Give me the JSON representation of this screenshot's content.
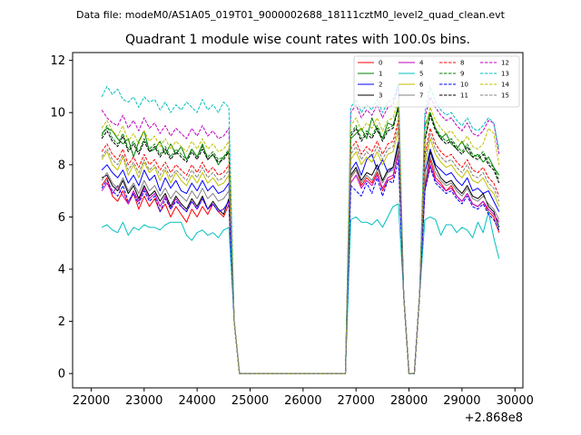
{
  "chart_data": {
    "type": "line",
    "suptitle": "Data file: modeM0/AS1A05_019T01_9000002688_18111cztM0_level2_quad_clean.evt",
    "title": "Quadrant 1 module wise count rates with 100.0s bins.",
    "xlabel": "",
    "ylabel": "",
    "x_offset_label": "+2.868e8",
    "xlim": [
      21650,
      30150
    ],
    "ylim": [
      -0.55,
      12.3
    ],
    "xticks": [
      22000,
      23000,
      24000,
      25000,
      26000,
      27000,
      28000,
      29000,
      30000
    ],
    "yticks": [
      0,
      2,
      4,
      6,
      8,
      10,
      12
    ],
    "legend_position": "top-right",
    "x": [
      22200,
      22300,
      22400,
      22500,
      22600,
      22700,
      22800,
      22900,
      23000,
      23100,
      23200,
      23300,
      23400,
      23500,
      23600,
      23700,
      23800,
      23900,
      24000,
      24100,
      24200,
      24300,
      24400,
      24500,
      24600,
      24700,
      24800,
      26800,
      26900,
      27000,
      27100,
      27200,
      27300,
      27400,
      27500,
      27600,
      27700,
      27800,
      27900,
      28000,
      28100,
      28200,
      28300,
      28400,
      28500,
      28600,
      28700,
      28800,
      28900,
      29000,
      29100,
      29200,
      29300,
      29400,
      29500,
      29600,
      29700
    ],
    "series": [
      {
        "name": "0",
        "color": "#ff0000",
        "dash": "solid",
        "values": [
          7.2,
          7.5,
          6.8,
          6.6,
          7.0,
          6.5,
          6.9,
          6.3,
          6.8,
          6.4,
          6.7,
          6.2,
          6.5,
          6.0,
          6.4,
          6.1,
          5.8,
          6.3,
          6.0,
          6.4,
          6.1,
          6.5,
          6.2,
          6.0,
          6.5,
          2.0,
          0.0,
          0.0,
          7.5,
          7.8,
          7.2,
          7.5,
          7.3,
          7.7,
          7.0,
          7.4,
          7.5,
          8.5,
          3.0,
          0.0,
          0.0,
          3.0,
          7.0,
          8.2,
          7.5,
          7.3,
          7.0,
          7.2,
          6.8,
          6.6,
          6.9,
          6.5,
          6.4,
          6.6,
          6.2,
          6.0,
          5.4
        ]
      },
      {
        "name": "1",
        "color": "#008000",
        "dash": "solid",
        "values": [
          9.2,
          9.4,
          9.3,
          9.0,
          8.8,
          9.0,
          8.3,
          8.9,
          9.3,
          8.5,
          8.6,
          8.9,
          8.4,
          8.8,
          8.4,
          8.7,
          8.2,
          8.6,
          8.3,
          8.8,
          8.2,
          8.4,
          8.0,
          8.3,
          8.5,
          2.0,
          0.0,
          0.0,
          9.0,
          9.2,
          9.4,
          9.0,
          9.8,
          9.3,
          9.0,
          9.6,
          9.5,
          10.2,
          3.0,
          0.0,
          0.0,
          3.0,
          9.5,
          10.0,
          9.4,
          9.0,
          9.2,
          8.8,
          8.6,
          8.9,
          8.5,
          8.3,
          8.4,
          8.1,
          8.3,
          7.9,
          7.6
        ]
      },
      {
        "name": "2",
        "color": "#0000ff",
        "dash": "solid",
        "values": [
          7.8,
          8.0,
          7.7,
          7.5,
          7.8,
          7.3,
          7.6,
          7.2,
          7.8,
          7.4,
          7.6,
          7.0,
          7.5,
          7.1,
          7.4,
          7.0,
          6.9,
          7.3,
          7.0,
          7.4,
          7.0,
          7.2,
          6.9,
          7.0,
          7.3,
          2.0,
          0.0,
          0.0,
          7.8,
          8.1,
          7.6,
          8.2,
          8.4,
          7.8,
          8.2,
          7.7,
          7.9,
          8.9,
          3.0,
          0.0,
          0.0,
          3.0,
          7.7,
          8.6,
          8.0,
          7.8,
          7.6,
          7.7,
          7.4,
          7.2,
          7.5,
          7.0,
          7.1,
          6.9,
          7.0,
          6.6,
          6.2
        ]
      },
      {
        "name": "3",
        "color": "#000000",
        "dash": "solid",
        "values": [
          7.5,
          7.6,
          7.2,
          7.0,
          7.4,
          6.9,
          7.2,
          6.7,
          7.2,
          6.8,
          7.0,
          6.6,
          6.9,
          6.4,
          6.8,
          6.5,
          6.3,
          6.7,
          6.4,
          6.8,
          6.3,
          6.6,
          6.3,
          6.1,
          6.7,
          2.0,
          0.0,
          0.0,
          7.6,
          7.9,
          7.4,
          7.7,
          7.6,
          8.0,
          7.4,
          7.8,
          7.9,
          8.8,
          3.0,
          0.0,
          0.0,
          3.0,
          7.2,
          8.5,
          7.9,
          7.5,
          7.3,
          7.4,
          7.1,
          6.9,
          7.2,
          6.8,
          6.7,
          6.9,
          6.4,
          6.2,
          5.6
        ]
      },
      {
        "name": "4",
        "color": "#bf00bf",
        "dash": "solid",
        "values": [
          7.0,
          7.3,
          6.9,
          7.2,
          6.8,
          6.5,
          7.0,
          6.6,
          7.1,
          6.7,
          6.9,
          6.4,
          6.8,
          6.3,
          6.7,
          6.4,
          6.2,
          6.6,
          6.3,
          6.7,
          6.3,
          6.5,
          6.2,
          6.3,
          6.6,
          2.0,
          0.0,
          0.0,
          7.3,
          7.6,
          7.1,
          7.4,
          7.2,
          7.6,
          7.1,
          7.5,
          7.6,
          8.4,
          3.0,
          0.0,
          0.0,
          3.0,
          7.0,
          8.0,
          7.4,
          7.2,
          7.0,
          7.1,
          6.8,
          6.6,
          6.9,
          6.5,
          6.4,
          6.6,
          6.3,
          6.1,
          5.8
        ]
      },
      {
        "name": "5",
        "color": "#00bfbf",
        "dash": "solid",
        "values": [
          5.6,
          5.7,
          5.5,
          5.4,
          5.8,
          5.3,
          5.6,
          5.5,
          5.7,
          5.6,
          5.6,
          5.5,
          5.7,
          5.8,
          5.8,
          5.8,
          5.3,
          5.1,
          5.4,
          5.5,
          5.3,
          5.4,
          5.2,
          5.5,
          5.6,
          2.0,
          0.0,
          0.0,
          5.9,
          6.0,
          5.8,
          5.8,
          5.7,
          5.9,
          5.6,
          6.0,
          6.4,
          6.5,
          3.0,
          0.0,
          0.0,
          3.0,
          5.9,
          6.0,
          5.9,
          5.3,
          5.7,
          5.7,
          5.4,
          5.6,
          5.5,
          5.2,
          5.8,
          5.4,
          6.2,
          5.2,
          4.4
        ]
      },
      {
        "name": "6",
        "color": "#bfbf00",
        "dash": "solid",
        "values": [
          8.2,
          8.5,
          8.0,
          7.8,
          8.3,
          7.6,
          8.0,
          7.5,
          8.1,
          7.7,
          7.9,
          7.4,
          7.8,
          7.3,
          7.7,
          7.4,
          7.2,
          7.6,
          7.3,
          7.7,
          7.3,
          7.5,
          7.2,
          7.3,
          7.6,
          2.0,
          0.0,
          0.0,
          8.2,
          8.5,
          8.0,
          8.3,
          8.1,
          8.5,
          8.0,
          8.4,
          8.5,
          9.3,
          3.0,
          0.0,
          0.0,
          3.0,
          8.0,
          9.0,
          8.4,
          8.1,
          7.9,
          8.0,
          7.7,
          7.5,
          7.8,
          7.4,
          7.3,
          7.5,
          7.1,
          6.9,
          6.4
        ]
      },
      {
        "name": "7",
        "color": "#808080",
        "dash": "solid",
        "values": [
          7.4,
          7.7,
          7.3,
          7.1,
          7.5,
          7.0,
          7.3,
          6.9,
          7.4,
          7.0,
          7.2,
          6.8,
          7.1,
          6.7,
          7.0,
          6.8,
          6.6,
          7.0,
          6.7,
          7.1,
          6.7,
          6.9,
          6.6,
          6.7,
          7.0,
          2.0,
          0.0,
          0.0,
          7.5,
          7.8,
          7.3,
          7.6,
          7.4,
          7.8,
          7.3,
          7.7,
          7.8,
          8.6,
          3.0,
          0.0,
          0.0,
          3.0,
          7.3,
          8.3,
          7.7,
          7.4,
          7.2,
          7.3,
          7.0,
          6.8,
          7.1,
          6.7,
          6.6,
          6.8,
          6.5,
          6.3,
          5.9
        ]
      },
      {
        "name": "8",
        "color": "#ff0000",
        "dash": "dashed",
        "values": [
          8.5,
          8.8,
          8.4,
          8.2,
          8.6,
          8.0,
          8.3,
          7.9,
          8.4,
          8.0,
          8.2,
          7.8,
          8.1,
          7.7,
          8.0,
          7.8,
          7.6,
          8.0,
          7.7,
          8.1,
          7.7,
          7.9,
          7.6,
          7.7,
          8.0,
          2.0,
          0.0,
          0.0,
          8.6,
          8.9,
          8.4,
          8.7,
          8.5,
          8.9,
          8.4,
          8.8,
          8.9,
          9.7,
          3.0,
          0.0,
          0.0,
          3.0,
          8.4,
          9.4,
          8.8,
          8.5,
          8.3,
          8.4,
          8.1,
          7.9,
          8.2,
          7.8,
          7.7,
          7.9,
          7.5,
          7.3,
          6.8
        ]
      },
      {
        "name": "9",
        "color": "#008000",
        "dash": "dashed",
        "values": [
          9.1,
          9.5,
          9.0,
          8.8,
          9.2,
          8.6,
          8.9,
          8.5,
          9.0,
          8.6,
          8.8,
          8.4,
          8.7,
          8.3,
          8.6,
          8.4,
          8.2,
          8.6,
          8.3,
          8.7,
          8.3,
          8.5,
          8.2,
          8.3,
          8.6,
          2.0,
          0.0,
          0.0,
          9.2,
          9.5,
          9.0,
          9.3,
          9.1,
          9.5,
          9.0,
          9.4,
          9.5,
          10.3,
          3.0,
          0.0,
          0.0,
          3.0,
          9.0,
          10.0,
          9.4,
          9.1,
          8.9,
          9.0,
          8.7,
          8.5,
          8.8,
          8.4,
          8.3,
          8.5,
          8.1,
          7.9,
          7.4
        ]
      },
      {
        "name": "10",
        "color": "#0000ff",
        "dash": "dashed",
        "values": [
          7.1,
          7.4,
          7.0,
          6.8,
          7.2,
          6.6,
          6.9,
          6.5,
          7.0,
          6.6,
          6.8,
          6.2,
          6.7,
          6.3,
          6.6,
          6.4,
          6.2,
          6.6,
          6.3,
          6.7,
          6.3,
          6.5,
          6.2,
          6.3,
          6.6,
          2.0,
          0.0,
          0.0,
          7.2,
          7.0,
          6.8,
          7.3,
          6.9,
          7.5,
          6.8,
          7.4,
          7.3,
          8.2,
          3.0,
          0.0,
          0.0,
          3.0,
          7.0,
          7.9,
          7.3,
          7.1,
          6.9,
          7.0,
          6.7,
          6.5,
          6.8,
          6.4,
          6.3,
          6.5,
          6.1,
          5.9,
          5.5
        ]
      },
      {
        "name": "11",
        "color": "#000000",
        "dash": "dashed",
        "values": [
          9.0,
          9.3,
          8.9,
          8.7,
          9.1,
          8.5,
          8.8,
          8.4,
          8.9,
          8.5,
          8.7,
          8.3,
          8.6,
          8.2,
          8.5,
          8.3,
          8.1,
          8.5,
          8.2,
          8.6,
          8.2,
          8.4,
          8.1,
          8.2,
          8.5,
          2.0,
          0.0,
          0.0,
          9.1,
          9.4,
          8.9,
          9.2,
          9.0,
          9.4,
          8.9,
          9.3,
          9.4,
          10.2,
          3.0,
          0.0,
          0.0,
          3.0,
          8.9,
          9.9,
          9.3,
          9.0,
          8.8,
          8.9,
          8.6,
          8.4,
          8.7,
          8.3,
          8.2,
          8.4,
          8.0,
          7.8,
          7.3
        ]
      },
      {
        "name": "12",
        "color": "#bf00bf",
        "dash": "dashed",
        "values": [
          10.1,
          9.8,
          9.6,
          9.5,
          9.9,
          9.4,
          9.7,
          9.3,
          9.8,
          9.4,
          9.6,
          9.2,
          9.5,
          9.1,
          9.4,
          9.2,
          9.0,
          9.4,
          9.1,
          9.5,
          9.1,
          9.3,
          9.0,
          9.1,
          9.4,
          2.0,
          0.0,
          0.0,
          10.0,
          10.3,
          9.8,
          10.1,
          9.9,
          10.3,
          9.8,
          10.2,
          10.3,
          11.0,
          3.0,
          0.0,
          0.0,
          3.0,
          9.8,
          10.6,
          10.2,
          9.9,
          9.7,
          9.8,
          9.5,
          9.3,
          9.6,
          9.2,
          9.1,
          9.3,
          9.7,
          9.6,
          8.4
        ]
      },
      {
        "name": "13",
        "color": "#00bfbf",
        "dash": "dashed",
        "values": [
          10.6,
          11.0,
          10.7,
          10.9,
          10.5,
          10.4,
          10.6,
          10.2,
          10.6,
          10.4,
          10.5,
          10.1,
          10.4,
          10.0,
          10.3,
          10.1,
          10.4,
          10.2,
          10.0,
          10.5,
          10.1,
          10.3,
          10.0,
          10.4,
          10.2,
          2.0,
          0.0,
          0.0,
          10.2,
          10.5,
          10.0,
          10.3,
          10.1,
          10.5,
          10.0,
          10.4,
          10.5,
          11.1,
          3.0,
          0.0,
          0.0,
          3.0,
          10.0,
          11.0,
          10.4,
          10.1,
          9.9,
          10.0,
          9.7,
          9.5,
          9.8,
          9.4,
          9.3,
          9.5,
          9.8,
          9.6,
          8.6
        ]
      },
      {
        "name": "14",
        "color": "#bfbf00",
        "dash": "dashed",
        "values": [
          9.4,
          9.7,
          9.3,
          9.1,
          9.5,
          8.9,
          9.2,
          8.8,
          9.3,
          8.9,
          9.1,
          8.7,
          9.0,
          8.6,
          8.9,
          8.7,
          8.5,
          8.9,
          8.6,
          9.0,
          8.6,
          8.8,
          8.5,
          8.6,
          8.9,
          2.0,
          0.0,
          0.0,
          9.5,
          9.8,
          9.3,
          9.6,
          9.4,
          9.8,
          9.3,
          9.7,
          9.8,
          10.5,
          3.0,
          0.0,
          0.0,
          3.0,
          9.3,
          10.2,
          9.7,
          9.4,
          9.2,
          9.3,
          9.0,
          8.8,
          9.1,
          8.7,
          8.6,
          8.8,
          9.4,
          9.2,
          8.0
        ]
      },
      {
        "name": "15",
        "color": "#808080",
        "dash": "dashed",
        "values": [
          8.3,
          8.6,
          8.2,
          8.0,
          8.4,
          7.8,
          8.1,
          7.7,
          8.2,
          7.8,
          8.0,
          7.6,
          7.9,
          7.5,
          7.8,
          7.6,
          7.4,
          7.8,
          7.5,
          7.9,
          7.5,
          7.7,
          7.4,
          7.5,
          7.8,
          2.0,
          0.0,
          0.0,
          8.4,
          8.7,
          8.2,
          8.5,
          8.3,
          8.7,
          8.2,
          8.6,
          8.7,
          9.5,
          3.0,
          0.0,
          0.0,
          3.0,
          8.2,
          9.2,
          8.6,
          8.3,
          8.1,
          8.2,
          7.9,
          7.7,
          8.0,
          7.6,
          7.5,
          7.7,
          7.3,
          7.1,
          6.6
        ]
      }
    ]
  }
}
